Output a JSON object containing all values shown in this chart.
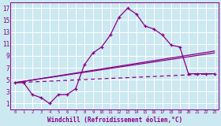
{
  "xlabel": "Windchill (Refroidissement éolien,°C)",
  "background_color": "#cce8f0",
  "grid_color": "#ffffff",
  "line_color": "#880088",
  "xlim": [
    -0.5,
    23.5
  ],
  "ylim": [
    0,
    18
  ],
  "xticks": [
    0,
    1,
    2,
    3,
    4,
    5,
    6,
    7,
    8,
    9,
    10,
    11,
    12,
    13,
    14,
    15,
    16,
    17,
    18,
    19,
    20,
    21,
    22,
    23
  ],
  "yticks": [
    1,
    3,
    5,
    7,
    9,
    11,
    13,
    15,
    17
  ],
  "main_x": [
    0,
    1,
    2,
    3,
    4,
    5,
    6,
    7,
    8,
    9,
    10,
    11,
    12,
    13,
    14,
    15,
    16,
    17,
    18,
    19,
    20,
    21,
    22,
    23
  ],
  "main_y": [
    4.5,
    4.5,
    2.5,
    2.0,
    1.0,
    2.5,
    2.5,
    3.5,
    7.5,
    9.5,
    10.5,
    12.5,
    15.5,
    17.0,
    16.0,
    14.0,
    13.5,
    12.5,
    10.8,
    10.5,
    6.0,
    6.0,
    6.0,
    6.0
  ],
  "line2_x": [
    0,
    23
  ],
  "line2_y": [
    4.5,
    9.5
  ],
  "line3_x": [
    0,
    23
  ],
  "line3_y": [
    4.5,
    9.8
  ],
  "line4_x": [
    0,
    23
  ],
  "line4_y": [
    4.5,
    6.0
  ]
}
